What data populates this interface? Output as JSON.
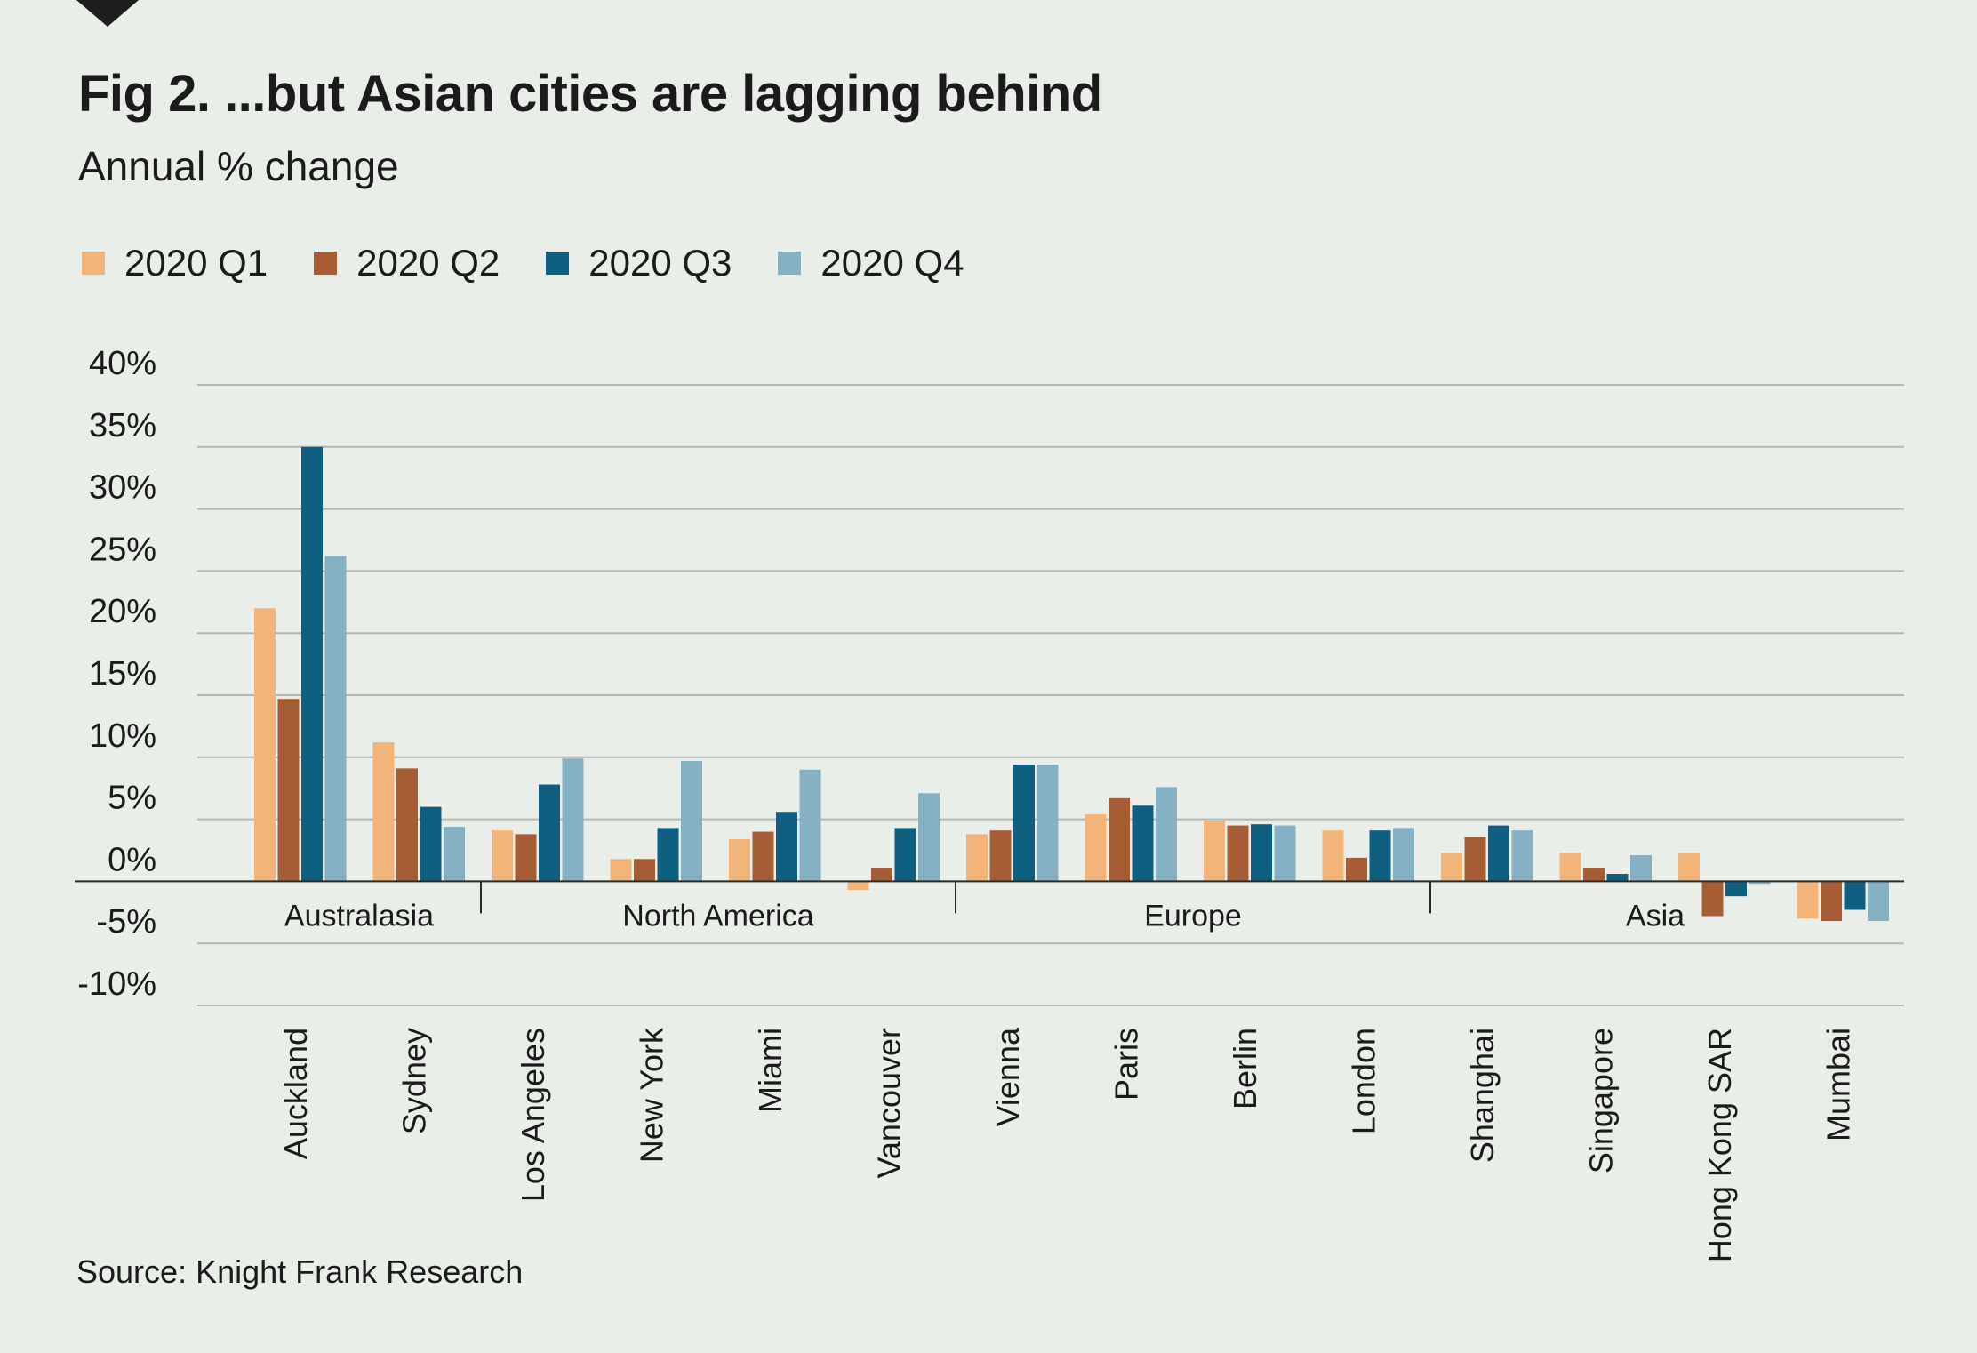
{
  "title": "Fig 2. ...but Asian cities are lagging behind",
  "subtitle": "Annual % change",
  "source": "Source: Knight Frank Research",
  "colors": {
    "background": "#eaeee9",
    "grid": "#b4b8b5",
    "text": "#1b1b1b",
    "corner_mark": "#1e1e1e"
  },
  "chart_data": {
    "type": "bar",
    "title": "Fig 2. ...but Asian cities are lagging behind",
    "subtitle": "Annual % change",
    "xlabel": "",
    "ylabel": "Annual % change",
    "ylim": [
      -10,
      40
    ],
    "yticks": [
      40,
      35,
      30,
      25,
      20,
      15,
      10,
      5,
      0,
      -5,
      -10
    ],
    "ytick_labels": [
      "40%",
      "35%",
      "30%",
      "25%",
      "20%",
      "15%",
      "10%",
      "5%",
      "0%",
      "-5%",
      "-10%"
    ],
    "grid": true,
    "legend_position": "top-left",
    "categories": [
      "Auckland",
      "Sydney",
      "Los Angeles",
      "New York",
      "Miami",
      "Vancouver",
      "Vienna",
      "Paris",
      "Berlin",
      "London",
      "Shanghai",
      "Singapore",
      "Hong Kong SAR",
      "Mumbai"
    ],
    "groups": [
      {
        "name": "Australasia",
        "count": 2
      },
      {
        "name": "North America",
        "count": 4
      },
      {
        "name": "Europe",
        "count": 4
      },
      {
        "name": "Asia",
        "count": 4
      }
    ],
    "series": [
      {
        "name": "2020 Q1",
        "color": "#f2b478",
        "values": [
          22,
          11.2,
          4.1,
          1.8,
          3.4,
          -0.7,
          3.8,
          5.4,
          4.9,
          4.1,
          2.3,
          2.3,
          2.3,
          -3.0
        ]
      },
      {
        "name": "2020 Q2",
        "color": "#a65c35",
        "values": [
          14.7,
          9.1,
          3.8,
          1.8,
          4.0,
          1.1,
          4.1,
          6.7,
          4.5,
          1.9,
          3.6,
          1.1,
          -2.8,
          -3.2
        ]
      },
      {
        "name": "2020 Q3",
        "color": "#0e5f80",
        "values": [
          35,
          6.0,
          7.8,
          4.3,
          5.6,
          4.3,
          9.4,
          6.1,
          4.6,
          4.1,
          4.5,
          0.6,
          -1.2,
          -2.3
        ]
      },
      {
        "name": "2020 Q4",
        "color": "#86b0c4",
        "values": [
          26.2,
          4.4,
          9.9,
          9.7,
          9.0,
          7.1,
          9.4,
          7.6,
          4.5,
          4.3,
          4.1,
          2.1,
          -0.2,
          -3.2
        ]
      }
    ]
  }
}
